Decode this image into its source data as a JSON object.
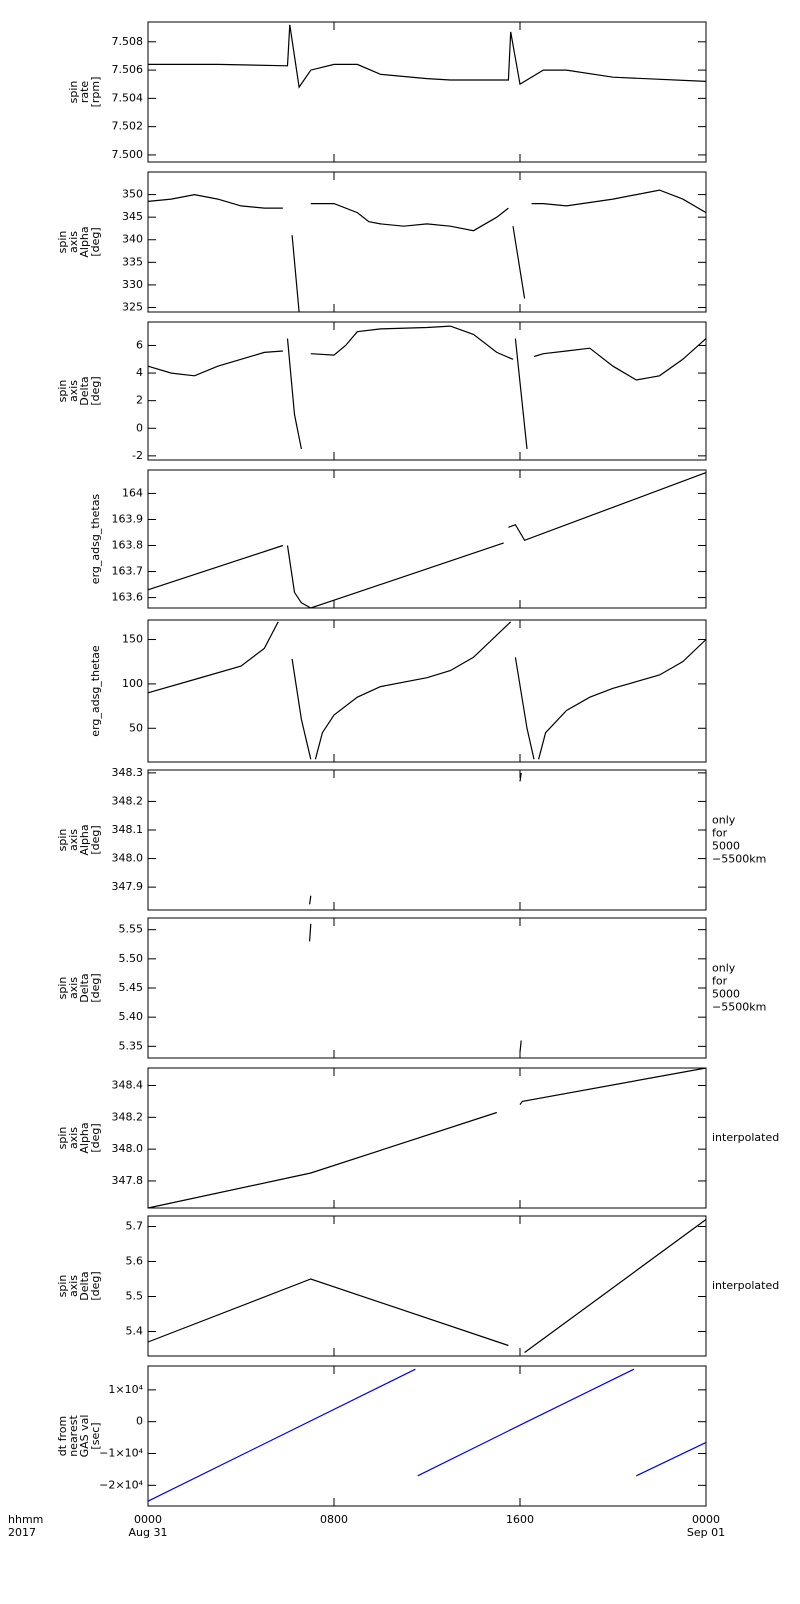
{
  "chart_data": [
    {
      "type": "line",
      "ylabel": [
        "spin",
        "rate",
        "[rpm]"
      ],
      "ylim": [
        7.4995,
        7.5094
      ],
      "yticks": [
        {
          "value": 7.5,
          "label": "7.500"
        },
        {
          "value": 7.502,
          "label": "7.502"
        },
        {
          "value": 7.504,
          "label": "7.504"
        },
        {
          "value": 7.506,
          "label": "7.506"
        },
        {
          "value": 7.508,
          "label": "7.508"
        }
      ],
      "x": [
        0,
        3,
        6,
        6.1,
        6.5,
        7,
        8,
        9,
        10,
        12,
        13,
        15.5,
        15.6,
        16,
        17,
        18,
        20,
        24
      ],
      "values": [
        7.5064,
        7.5064,
        7.5063,
        7.5092,
        7.5048,
        7.506,
        7.5064,
        7.5064,
        7.5057,
        7.5054,
        7.5053,
        7.5053,
        7.5087,
        7.505,
        7.506,
        7.506,
        7.5055,
        7.5052
      ],
      "color": "#000000"
    },
    {
      "type": "line",
      "ylabel": [
        "spin",
        "axis",
        "Alpha",
        "[deg]"
      ],
      "ylim": [
        324,
        355
      ],
      "yticks": [
        325,
        330,
        335,
        340,
        345,
        350
      ],
      "x": [
        0,
        1,
        2,
        3,
        4,
        5,
        5.8,
        5.9,
        6.2,
        6.5,
        6.6,
        7,
        8,
        9,
        9.5,
        10,
        11,
        12,
        13,
        14,
        15,
        15.5,
        15.6,
        15.7,
        16.2,
        16.3,
        16.5,
        17,
        18,
        20,
        21,
        22,
        23,
        24
      ],
      "values": [
        348.5,
        349,
        350,
        349,
        347.5,
        347,
        347,
        null,
        341,
        324,
        null,
        348,
        348,
        346,
        344,
        343.5,
        343,
        343.5,
        343,
        342,
        345,
        347,
        null,
        343,
        327,
        null,
        348,
        348,
        347.5,
        349,
        350,
        351,
        349,
        346
      ],
      "color": "#000000"
    },
    {
      "type": "line",
      "ylabel": [
        "spin",
        "axis",
        "Delta",
        "[deg]"
      ],
      "ylim": [
        -2.3,
        7.7
      ],
      "yticks": [
        -2,
        0,
        2,
        4,
        6
      ],
      "x": [
        0,
        1,
        2,
        3,
        4,
        5,
        5.8,
        5.9,
        6,
        6.3,
        6.6,
        6.7,
        7,
        8,
        8.5,
        9,
        10,
        12,
        13,
        14,
        15,
        15.7,
        15.75,
        15.8,
        16.3,
        16.4,
        16.6,
        17,
        18,
        19,
        20,
        21,
        22,
        23,
        24
      ],
      "values": [
        4.5,
        4,
        3.8,
        4.5,
        5,
        5.5,
        5.6,
        null,
        6.5,
        1,
        -1.5,
        null,
        5.4,
        5.3,
        6,
        7,
        7.2,
        7.3,
        7.4,
        6.8,
        5.5,
        5,
        null,
        6.5,
        -1.5,
        null,
        5.2,
        5.4,
        5.6,
        5.8,
        4.5,
        3.5,
        3.8,
        5,
        6.5
      ],
      "color": "#000000"
    },
    {
      "type": "line",
      "ylabel": [
        "erg_adsg_thetas"
      ],
      "ylim": [
        163.56,
        164.09
      ],
      "yticks": [
        163.6,
        163.7,
        163.8,
        163.9,
        164
      ],
      "x": [
        0,
        5.8,
        5.9,
        6,
        6.3,
        6.6,
        7,
        8,
        15.3,
        15.4,
        15.5,
        15.8,
        16.2,
        24
      ],
      "values": [
        163.63,
        163.8,
        null,
        163.8,
        163.62,
        163.58,
        163.56,
        163.59,
        163.81,
        null,
        163.87,
        163.88,
        163.82,
        164.08
      ],
      "color": "#000000"
    },
    {
      "type": "line",
      "ylabel": [
        "erg_adsg_thetae"
      ],
      "ylim": [
        12,
        172
      ],
      "yticks": [
        50,
        100,
        150
      ],
      "x": [
        0,
        2,
        4,
        5,
        5.6,
        5.9,
        6.2,
        6.6,
        7,
        7.1,
        7.2,
        7.5,
        8,
        9,
        10,
        12,
        13,
        14,
        15,
        15.6,
        15.7,
        15.8,
        16.3,
        16.6,
        16.7,
        16.8,
        17.1,
        18,
        19,
        20,
        22,
        23,
        24
      ],
      "values": [
        90,
        105,
        120,
        140,
        170,
        null,
        128,
        60,
        15,
        null,
        15,
        45,
        65,
        85,
        97,
        107,
        115,
        130,
        155,
        170,
        null,
        130,
        50,
        15,
        null,
        15,
        45,
        70,
        85,
        95,
        110,
        125,
        150
      ],
      "color": "#000000"
    },
    {
      "type": "line",
      "ylabel": [
        "spin",
        "axis",
        "Alpha",
        "[deg]"
      ],
      "ylim": [
        347.82,
        348.31
      ],
      "yticks": [
        347.9,
        {
          "value": 348,
          "label": "348.0"
        },
        348.1,
        348.2,
        348.3
      ],
      "x": [
        6.95,
        7,
        8,
        16,
        16.05
      ],
      "values": [
        347.84,
        347.87,
        null,
        348.27,
        348.3
      ],
      "color": "#000000",
      "side_note": [
        "only",
        "for",
        "5000",
        "−5500km"
      ]
    },
    {
      "type": "line",
      "ylabel": [
        "spin",
        "axis",
        "Delta",
        "[deg]"
      ],
      "ylim": [
        5.33,
        5.57
      ],
      "yticks": [
        5.35,
        {
          "value": 5.4,
          "label": "5.40"
        },
        5.45,
        {
          "value": 5.5,
          "label": "5.50"
        },
        5.55
      ],
      "x": [
        6.95,
        7,
        8,
        16,
        16.05
      ],
      "values": [
        5.53,
        5.56,
        null,
        5.34,
        5.36
      ],
      "color": "#000000",
      "side_note": [
        "only",
        "for",
        "5000",
        "−5500km"
      ]
    },
    {
      "type": "line",
      "ylabel": [
        "spin",
        "axis",
        "Alpha",
        "[deg]"
      ],
      "ylim": [
        347.63,
        348.51
      ],
      "yticks": [
        347.8,
        {
          "value": 348,
          "label": "348.0"
        },
        348.2,
        348.4
      ],
      "x": [
        0,
        7,
        15,
        15.5,
        16,
        16.1,
        24
      ],
      "values": [
        347.63,
        347.85,
        348.23,
        null,
        348.28,
        348.3,
        348.51
      ],
      "color": "#000000",
      "side_note": [
        "interpolated"
      ]
    },
    {
      "type": "line",
      "ylabel": [
        "spin",
        "axis",
        "Delta",
        "[deg]"
      ],
      "ylim": [
        5.33,
        5.73
      ],
      "yticks": [
        5.4,
        5.5,
        5.6,
        5.7
      ],
      "x": [
        0,
        7,
        15.5,
        15.8,
        16.2,
        24
      ],
      "values": [
        5.37,
        5.55,
        5.36,
        null,
        5.34,
        5.72
      ],
      "color": "#000000",
      "side_note": [
        "interpolated"
      ]
    },
    {
      "type": "line",
      "ylabel": [
        "dt from",
        "nearest",
        "GAS val",
        "[sec]"
      ],
      "ylim": [
        -26500,
        17500
      ],
      "yticks": [
        {
          "value": -20000,
          "label": "−2×10⁴"
        },
        {
          "value": -10000,
          "label": "−1×10⁴"
        },
        0,
        {
          "value": 10000,
          "label": "1×10⁴"
        }
      ],
      "x": [
        0,
        11.5,
        11.55,
        11.6,
        16.3,
        20.9,
        20.95,
        21,
        24
      ],
      "values": [
        -25000,
        16500,
        null,
        -17000,
        0,
        16500,
        null,
        -17000,
        -6500
      ],
      "color": "#0000ee",
      "xticks": [
        {
          "value": 0,
          "label": "0000"
        },
        {
          "value": 8,
          "label": "0800"
        },
        {
          "value": 16,
          "label": "1600"
        },
        {
          "value": 24,
          "label": "0000"
        }
      ],
      "xtick_dates": [
        "Aug 31",
        null,
        null,
        "Sep 01"
      ],
      "xlim": [
        0,
        24
      ],
      "xlabel": [
        "hhmm",
        "2017"
      ]
    }
  ]
}
